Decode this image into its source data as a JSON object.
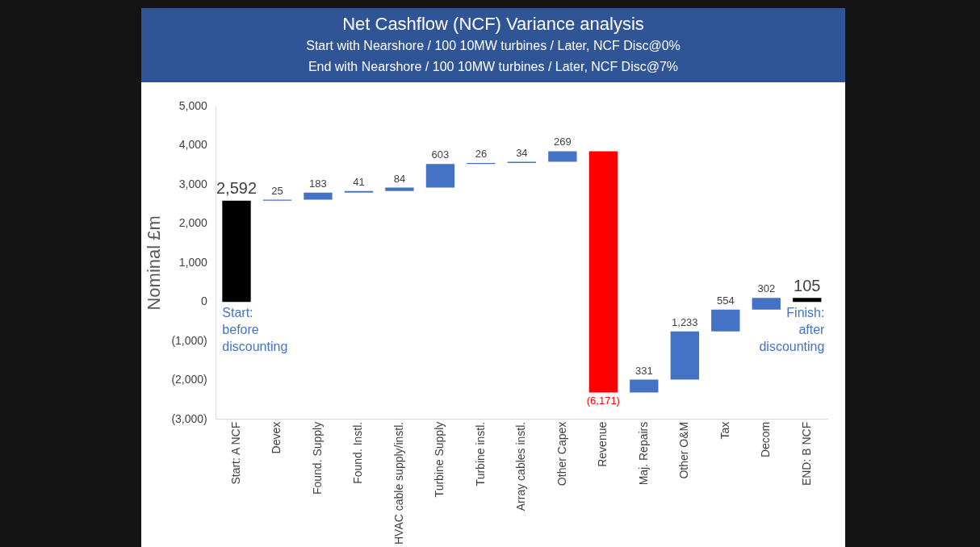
{
  "chart_data": {
    "type": "bar",
    "title": "Net Cashflow (NCF) Variance analysis",
    "subtitle": "Start with Nearshore / 100 10MW turbines / Later, NCF Disc@0%\nEnd with Nearshore / 100 10MW turbines / Later, NCF Disc@7%",
    "ylabel": "Nominal £m",
    "categories": [
      "Start: A NCF",
      "Devex",
      "Found. Supply",
      "Found. Instl.",
      "HVAC cable supply/instl.",
      "Turbine Supply",
      "Turbine instl.",
      "Array cables instl.",
      "Other Capex",
      "Revenue",
      "Maj. Repairs",
      "Other O&M",
      "Tax",
      "Decom",
      "END: B NCF"
    ],
    "values": [
      2592,
      25,
      183,
      41,
      84,
      603,
      26,
      34,
      269,
      -6171,
      331,
      1233,
      554,
      302,
      105
    ],
    "base": [
      0,
      2592,
      2617,
      2800,
      2841,
      2925,
      3528,
      3554,
      3588,
      3857,
      -2314,
      -1983,
      -750,
      -196,
      0
    ],
    "colors": [
      "#000000",
      "#4472c4",
      "#4472c4",
      "#4472c4",
      "#4472c4",
      "#4472c4",
      "#4472c4",
      "#4472c4",
      "#4472c4",
      "#ff0000",
      "#4472c4",
      "#4472c4",
      "#4472c4",
      "#4472c4",
      "#000000"
    ],
    "value_labels": [
      "2,592",
      "25",
      "183",
      "41",
      "84",
      "603",
      "26",
      "34",
      "269",
      "(6,171)",
      "331",
      "1,233",
      "554",
      "302",
      "105"
    ],
    "ylim": [
      -3000,
      5000
    ],
    "yticks": [
      {
        "value": -3000,
        "label": "(3,000)"
      },
      {
        "value": -2000,
        "label": "(2,000)"
      },
      {
        "value": -1000,
        "label": "(1,000)"
      },
      0,
      {
        "value": 1000,
        "label": "1,000"
      },
      {
        "value": 2000,
        "label": "2,000"
      },
      {
        "value": 3000,
        "label": "3,000"
      },
      {
        "value": 4000,
        "label": "4,000"
      },
      {
        "value": 5000,
        "label": "5,000"
      }
    ],
    "annotations": [
      "Start: before discounting",
      "Finish: after discounting"
    ],
    "grid": false,
    "legend": false
  }
}
